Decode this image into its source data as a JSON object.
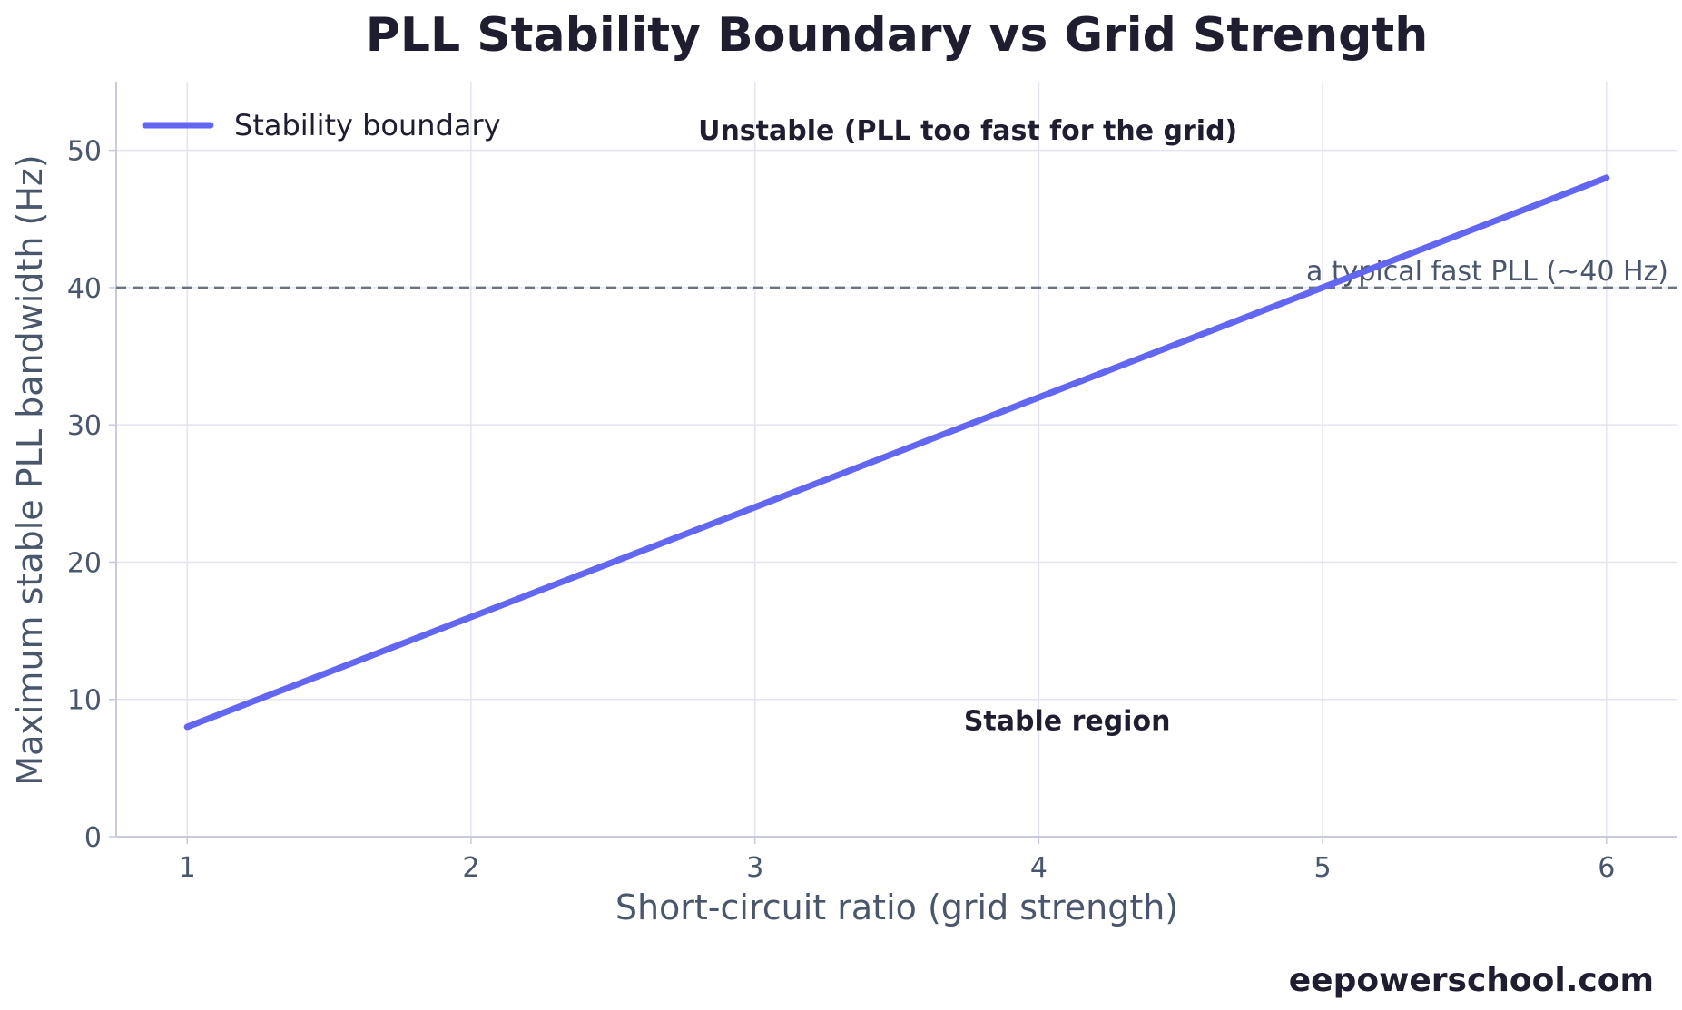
{
  "chart_data": {
    "type": "line",
    "title": "PLL Stability Boundary vs Grid Strength",
    "xlabel": "Short-circuit ratio (grid strength)",
    "ylabel": "Maximum stable PLL bandwidth (Hz)",
    "xlim": [
      0.75,
      6.25
    ],
    "ylim": [
      0,
      55
    ],
    "x_ticks": [
      1,
      2,
      3,
      4,
      5,
      6
    ],
    "y_ticks": [
      0,
      10,
      20,
      30,
      40,
      50
    ],
    "grid": true,
    "legend_position": "top-left",
    "series": [
      {
        "name": "Stability boundary",
        "color": "#6366f1",
        "x": [
          1,
          2,
          3,
          4,
          5,
          6
        ],
        "y": [
          8,
          16,
          24,
          32,
          40,
          48
        ]
      }
    ],
    "reference_line": {
      "y": 40,
      "label": "a typical fast PLL (~40 Hz)",
      "color": "#6b7280",
      "style": "dashed"
    },
    "annotations": [
      {
        "text": "Unstable (PLL too fast for the grid)",
        "x": 3.75,
        "y": 51.5
      },
      {
        "text": "Stable region",
        "x": 4.1,
        "y": 8.5
      }
    ]
  },
  "watermark": "eepowerschool.com"
}
